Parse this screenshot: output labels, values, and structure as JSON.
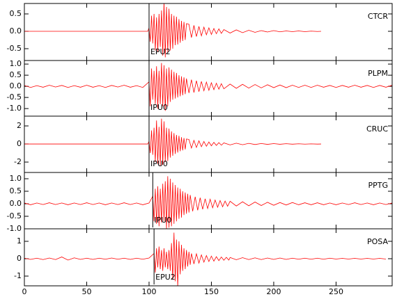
{
  "chart_data": [
    {
      "type": "line",
      "title": "CTCR",
      "color": "#ff0000",
      "xlim": [
        0,
        295
      ],
      "ylim": [
        -0.84,
        0.8
      ],
      "yticks": [
        0.5,
        {
          "value": 0,
          "label": "0.0"
        },
        -0.5
      ],
      "pick": {
        "label": "EPU2",
        "x": 100
      },
      "x": [
        0,
        99,
        100,
        101,
        102,
        103,
        104,
        105,
        106,
        107,
        108,
        109,
        110,
        111,
        112,
        113,
        114,
        115,
        116,
        117,
        118,
        119,
        120,
        121,
        122,
        123,
        124,
        125,
        126,
        127,
        128,
        129,
        130,
        132,
        134,
        136,
        138,
        140,
        142,
        144,
        146,
        148,
        150,
        152,
        154,
        156,
        158,
        160,
        165,
        170,
        175,
        180,
        185,
        190,
        195,
        200,
        205,
        210,
        215,
        220,
        225,
        230,
        235,
        238
      ],
      "values": [
        0,
        0,
        0.1,
        -0.3,
        0.45,
        -0.35,
        0.5,
        -0.55,
        0.4,
        -0.6,
        0.5,
        -0.45,
        0.6,
        -0.7,
        0.85,
        -0.75,
        0.7,
        -0.6,
        0.65,
        -0.55,
        0.5,
        -0.5,
        0.45,
        -0.4,
        0.42,
        -0.38,
        0.35,
        -0.33,
        0.3,
        -0.28,
        0.27,
        -0.25,
        0.22,
        0.2,
        -0.18,
        0.17,
        -0.15,
        0.14,
        -0.13,
        0.12,
        -0.1,
        0.1,
        -0.09,
        0.08,
        -0.07,
        0.07,
        -0.06,
        0.05,
        -0.05,
        0.04,
        -0.04,
        0.03,
        -0.03,
        0.02,
        -0.02,
        0.02,
        -0.015,
        0.01,
        -0.01,
        0.01,
        -0.01,
        0.005,
        -0.005,
        0
      ]
    },
    {
      "type": "line",
      "title": "PLPM",
      "color": "#ff0000",
      "xlim": [
        0,
        295
      ],
      "ylim": [
        -1.34,
        1.16
      ],
      "yticks": [
        {
          "value": 1,
          "label": "1.0"
        },
        0.5,
        {
          "value": 0,
          "label": "0.0"
        },
        -0.5,
        {
          "value": -1,
          "label": "-1.0"
        }
      ],
      "pick": {
        "label": "IPU0",
        "x": 100
      },
      "x": [
        0,
        5,
        10,
        15,
        20,
        25,
        30,
        35,
        40,
        45,
        50,
        55,
        60,
        65,
        70,
        75,
        80,
        85,
        90,
        95,
        100,
        101,
        102,
        103,
        104,
        105,
        106,
        107,
        108,
        109,
        110,
        111,
        112,
        113,
        114,
        115,
        116,
        117,
        118,
        119,
        120,
        121,
        122,
        123,
        124,
        125,
        126,
        127,
        128,
        129,
        130,
        132,
        134,
        136,
        138,
        140,
        142,
        144,
        146,
        148,
        150,
        152,
        154,
        156,
        158,
        160,
        165,
        170,
        175,
        180,
        185,
        190,
        195,
        200,
        205,
        210,
        215,
        220,
        225,
        230,
        235,
        240,
        245,
        250,
        255,
        260,
        265,
        270,
        275,
        280,
        285,
        290,
        295
      ],
      "values": [
        0.04,
        -0.05,
        0.03,
        -0.04,
        0.05,
        -0.03,
        0.04,
        -0.05,
        0.03,
        -0.04,
        0.05,
        -0.04,
        0.03,
        -0.05,
        0.04,
        -0.03,
        0.05,
        -0.04,
        0.03,
        -0.05,
        0.2,
        -0.9,
        0.8,
        -0.6,
        0.7,
        -0.8,
        0.9,
        -1.0,
        0.7,
        -0.8,
        1.05,
        -0.9,
        0.95,
        -1.1,
        0.8,
        -0.9,
        0.85,
        -0.7,
        0.75,
        -0.6,
        0.65,
        -0.55,
        0.6,
        -0.5,
        0.5,
        -0.45,
        0.45,
        -0.4,
        0.4,
        -0.35,
        0.35,
        -0.3,
        0.3,
        -0.28,
        0.25,
        -0.24,
        0.22,
        -0.2,
        0.19,
        -0.18,
        0.16,
        -0.15,
        0.14,
        -0.13,
        0.12,
        -0.11,
        0.1,
        -0.09,
        0.09,
        -0.08,
        0.08,
        -0.07,
        0.07,
        -0.06,
        0.06,
        -0.06,
        0.05,
        -0.05,
        0.05,
        -0.05,
        0.05,
        -0.04,
        0.04,
        -0.05,
        0.04,
        -0.04,
        0.05,
        -0.04,
        0.04,
        -0.05,
        0.04,
        -0.04,
        0.05
      ]
    },
    {
      "type": "line",
      "title": "CRUC",
      "color": "#ff0000",
      "xlim": [
        0,
        295
      ],
      "ylim": [
        -3.15,
        3.08
      ],
      "yticks": [
        2,
        0,
        -2
      ],
      "pick": {
        "label": "IPU0",
        "x": 100
      },
      "x": [
        0,
        99,
        100,
        101,
        102,
        103,
        104,
        105,
        106,
        107,
        108,
        109,
        110,
        111,
        112,
        113,
        114,
        115,
        116,
        117,
        118,
        119,
        120,
        121,
        122,
        123,
        124,
        125,
        126,
        127,
        128,
        129,
        130,
        132,
        134,
        136,
        138,
        140,
        142,
        144,
        146,
        148,
        150,
        152,
        154,
        156,
        158,
        160,
        165,
        170,
        175,
        180,
        185,
        190,
        195,
        200,
        205,
        210,
        215,
        220,
        225,
        230,
        235,
        238
      ],
      "values": [
        0,
        0,
        0.3,
        -1.0,
        1.5,
        -1.2,
        1.8,
        -2.0,
        2.6,
        -2.2,
        1.9,
        -2.4,
        2.8,
        -2.3,
        2.5,
        -2.0,
        1.8,
        -1.9,
        1.7,
        -1.5,
        1.4,
        -1.3,
        1.2,
        -1.1,
        1.0,
        -0.95,
        0.9,
        -0.8,
        0.75,
        -0.7,
        0.65,
        -0.6,
        0.55,
        0.5,
        -0.45,
        0.4,
        -0.38,
        0.35,
        -0.3,
        0.28,
        -0.25,
        0.22,
        -0.2,
        0.18,
        -0.16,
        0.15,
        -0.13,
        0.12,
        -0.1,
        0.09,
        -0.08,
        0.07,
        -0.06,
        0.05,
        -0.04,
        0.04,
        -0.03,
        0.03,
        -0.02,
        0.02,
        -0.015,
        0.01,
        -0.01,
        0
      ]
    },
    {
      "type": "line",
      "title": "PPTG",
      "color": "#ff0000",
      "xlim": [
        0,
        295
      ],
      "ylim": [
        -1.0,
        1.25
      ],
      "yticks": [
        {
          "value": 1,
          "label": "1.0"
        },
        0.5,
        {
          "value": 0,
          "label": "0.0"
        },
        -0.5,
        {
          "value": -1,
          "label": "-1.0"
        }
      ],
      "pick": {
        "label": "IPU0",
        "x": 103
      },
      "x": [
        0,
        5,
        10,
        15,
        20,
        25,
        30,
        35,
        40,
        45,
        50,
        55,
        60,
        65,
        70,
        75,
        80,
        85,
        90,
        95,
        100,
        103,
        104,
        105,
        106,
        107,
        108,
        109,
        110,
        111,
        112,
        113,
        114,
        115,
        116,
        117,
        118,
        119,
        120,
        121,
        122,
        123,
        124,
        125,
        126,
        127,
        128,
        129,
        130,
        131,
        132,
        133,
        135,
        137,
        139,
        141,
        143,
        145,
        147,
        149,
        151,
        153,
        155,
        157,
        159,
        161,
        163,
        165,
        170,
        175,
        180,
        185,
        190,
        195,
        200,
        205,
        210,
        215,
        220,
        225,
        230,
        235,
        240,
        245,
        250,
        255,
        260,
        265,
        270,
        275,
        280,
        285,
        290,
        295
      ],
      "values": [
        0.03,
        -0.04,
        0.03,
        -0.03,
        0.04,
        -0.03,
        0.03,
        -0.04,
        0.03,
        -0.03,
        0.04,
        -0.03,
        0.03,
        -0.04,
        0.03,
        -0.03,
        0.04,
        -0.03,
        0.03,
        -0.04,
        0.03,
        0.3,
        -0.7,
        0.6,
        -0.8,
        0.7,
        -0.9,
        0.6,
        -0.75,
        0.8,
        -0.7,
        0.9,
        -1.0,
        1.1,
        -0.95,
        1.0,
        -0.9,
        0.85,
        -0.8,
        0.75,
        -0.7,
        0.65,
        -0.6,
        0.6,
        -0.55,
        0.5,
        -0.45,
        0.45,
        -0.4,
        0.4,
        -0.35,
        0.35,
        -0.3,
        0.28,
        -0.26,
        0.24,
        -0.22,
        0.2,
        -0.19,
        0.18,
        -0.16,
        0.15,
        -0.14,
        0.13,
        -0.12,
        0.11,
        -0.1,
        0.1,
        -0.09,
        0.08,
        -0.08,
        0.07,
        -0.07,
        0.06,
        -0.06,
        0.05,
        -0.05,
        0.05,
        -0.04,
        0.04,
        -0.04,
        0.04,
        -0.04,
        0.03,
        -0.04,
        0.03,
        -0.03,
        0.04,
        -0.03,
        0.03,
        -0.04,
        0.03,
        -0.03,
        0.03
      ]
    },
    {
      "type": "line",
      "title": "POSA",
      "color": "#ff0000",
      "xlim": [
        0,
        295
      ],
      "ylim": [
        -1.56,
        1.72
      ],
      "yticks": [
        1,
        0,
        -1
      ],
      "xticks": [
        0,
        50,
        100,
        150,
        200,
        250
      ],
      "pick": {
        "label": "EPU2",
        "x": 104
      },
      "x": [
        0,
        5,
        10,
        15,
        20,
        25,
        30,
        35,
        40,
        45,
        50,
        55,
        60,
        65,
        70,
        75,
        80,
        85,
        90,
        95,
        100,
        104,
        105,
        106,
        107,
        108,
        109,
        110,
        111,
        112,
        113,
        114,
        115,
        116,
        117,
        118,
        119,
        120,
        121,
        122,
        123,
        124,
        125,
        126,
        127,
        128,
        129,
        130,
        131,
        132,
        133,
        134,
        136,
        138,
        140,
        142,
        144,
        146,
        148,
        150,
        152,
        154,
        156,
        158,
        160,
        162,
        164,
        165,
        170,
        175,
        180,
        185,
        190,
        195,
        200,
        205,
        210,
        215,
        220,
        225,
        230,
        235,
        240,
        245,
        250,
        255,
        260,
        265,
        270,
        275,
        280,
        285,
        290
      ],
      "values": [
        0.03,
        -0.04,
        0.03,
        -0.05,
        0.04,
        -0.05,
        0.1,
        -0.08,
        0.05,
        -0.04,
        0.03,
        -0.04,
        0.03,
        -0.03,
        0.04,
        -0.03,
        0.03,
        -0.04,
        0.03,
        -0.03,
        0.04,
        0.3,
        -0.8,
        0.6,
        -0.5,
        0.7,
        -0.6,
        0.5,
        -0.7,
        0.6,
        -0.5,
        0.4,
        -0.6,
        0.5,
        -0.7,
        0.9,
        -1.2,
        1.5,
        -1.3,
        1.1,
        -1.6,
        1.0,
        -0.9,
        0.8,
        -0.7,
        0.6,
        -0.6,
        0.5,
        -0.45,
        0.4,
        -0.35,
        0.3,
        -0.3,
        0.28,
        -0.25,
        0.22,
        -0.2,
        0.18,
        -0.16,
        0.15,
        -0.14,
        0.12,
        -0.11,
        0.1,
        -0.09,
        0.08,
        -0.08,
        0.07,
        -0.06,
        0.06,
        -0.05,
        0.05,
        -0.05,
        0.04,
        -0.04,
        0.04,
        -0.04,
        0.03,
        -0.03,
        0.03,
        -0.03,
        0.03,
        -0.03,
        0.03,
        -0.02,
        0.02,
        -0.02,
        0.02,
        -0.02,
        0.02,
        -0.02,
        0.02,
        -0.02
      ]
    }
  ]
}
